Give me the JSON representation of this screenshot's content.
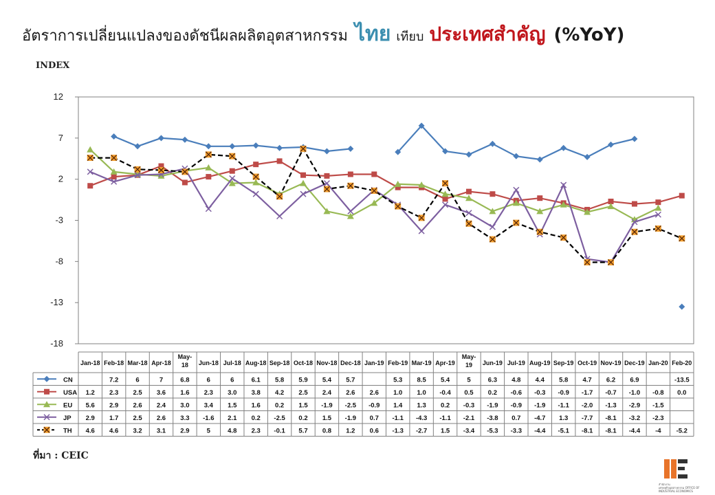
{
  "header": {
    "title_part1": "อัตราการเปลี่ยนแปลงของดัชนีผลผลิตอุตสาหกรรม",
    "title_part2": "ไทย",
    "title_part3": "เทียบ",
    "title_part4": "ประเทศสำคัญ",
    "title_part5": "(%YoY)"
  },
  "axis_label": "INDEX",
  "source": "ที่มา : CEIC",
  "logo": {
    "line1": "สำนักงาน",
    "line2": "เศรษฐกิจอุตสาหกรรม",
    "line3": "OFFICE",
    "line4": "OF INDUSTRIAL ECONOMICS"
  },
  "chart_data": {
    "type": "line",
    "title": "",
    "ylabel": "INDEX",
    "xlabel": "",
    "ylim": [
      -18,
      12
    ],
    "yticks": [
      12,
      7,
      2,
      -3,
      -8,
      -13,
      -18
    ],
    "grid": false,
    "legend": "table-below",
    "categories": [
      "Jan-18",
      "Feb-18",
      "Mar-18",
      "Apr-18",
      "May-18",
      "Jun-18",
      "Jul-18",
      "Aug-18",
      "Sep-18",
      "Oct-18",
      "Nov-18",
      "Dec-18",
      "Jan-19",
      "Feb-19",
      "Mar-19",
      "Apr-19",
      "May-19",
      "Jun-19",
      "Jul-19",
      "Aug-19",
      "Sep-19",
      "Oct-19",
      "Nov-19",
      "Dec-19",
      "Jan-20",
      "Feb-20"
    ],
    "category_labels": [
      "Jan-18",
      "Feb-18",
      "Mar-18",
      "Apr-18",
      "May-\n18",
      "Jun-18",
      "Jul-18",
      "Aug-18",
      "Sep-18",
      "Oct-18",
      "Nov-18",
      "Dec-18",
      "Jan-19",
      "Feb-19",
      "Mar-19",
      "Apr-19",
      "May-\n19",
      "Jun-19",
      "Jul-19",
      "Aug-19",
      "Sep-19",
      "Oct-19",
      "Nov-19",
      "Dec-19",
      "Jan-20",
      "Feb-20"
    ],
    "series": [
      {
        "name": "CN",
        "color": "#4a7ebb",
        "marker": "diamond",
        "values": [
          null,
          7.2,
          6,
          7,
          6.8,
          6,
          6,
          6.1,
          5.8,
          5.9,
          5.4,
          5.7,
          null,
          5.3,
          8.5,
          5.4,
          5,
          6.3,
          4.8,
          4.4,
          5.8,
          4.7,
          6.2,
          6.9,
          null,
          -13.5
        ],
        "labels": [
          "",
          "7.2",
          "6",
          "7",
          "6.8",
          "6",
          "6",
          "6.1",
          "5.8",
          "5.9",
          "5.4",
          "5.7",
          "",
          "5.3",
          "8.5",
          "5.4",
          "5",
          "6.3",
          "4.8",
          "4.4",
          "5.8",
          "4.7",
          "6.2",
          "6.9",
          "",
          "-13.5"
        ]
      },
      {
        "name": "USA",
        "color": "#be4b48",
        "marker": "square",
        "values": [
          1.2,
          2.3,
          2.5,
          3.6,
          1.6,
          2.3,
          3.0,
          3.8,
          4.2,
          2.5,
          2.4,
          2.6,
          2.6,
          1.0,
          1.0,
          -0.4,
          0.5,
          0.2,
          -0.6,
          -0.3,
          -0.9,
          -1.7,
          -0.7,
          -1.0,
          -0.8,
          0.0
        ],
        "labels": [
          "1.2",
          "2.3",
          "2.5",
          "3.6",
          "1.6",
          "2.3",
          "3.0",
          "3.8",
          "4.2",
          "2.5",
          "2.4",
          "2.6",
          "2.6",
          "1.0",
          "1.0",
          "-0.4",
          "0.5",
          "0.2",
          "-0.6",
          "-0.3",
          "-0.9",
          "-1.7",
          "-0.7",
          "-1.0",
          "-0.8",
          "0.0"
        ]
      },
      {
        "name": "EU",
        "color": "#98b954",
        "marker": "triangle",
        "values": [
          5.6,
          2.9,
          2.6,
          2.4,
          3.0,
          3.4,
          1.5,
          1.6,
          0.2,
          1.5,
          -1.9,
          -2.5,
          -0.9,
          1.4,
          1.3,
          0.2,
          -0.3,
          -1.9,
          -0.9,
          -1.9,
          -1.1,
          -2.0,
          -1.3,
          -2.9,
          -1.5,
          null
        ],
        "labels": [
          "5.6",
          "2.9",
          "2.6",
          "2.4",
          "3.0",
          "3.4",
          "1.5",
          "1.6",
          "0.2",
          "1.5",
          "-1.9",
          "-2.5",
          "-0.9",
          "1.4",
          "1.3",
          "0.2",
          "-0.3",
          "-1.9",
          "-0.9",
          "-1.9",
          "-1.1",
          "-2.0",
          "-1.3",
          "-2.9",
          "-1.5",
          ""
        ]
      },
      {
        "name": "JP",
        "color": "#7d5fa0",
        "marker": "cross",
        "values": [
          2.9,
          1.7,
          2.5,
          2.6,
          3.3,
          -1.6,
          2.1,
          0.2,
          -2.5,
          0.2,
          1.5,
          -1.9,
          0.7,
          -1.1,
          -4.3,
          -1.1,
          -2.1,
          -3.8,
          0.7,
          -4.7,
          1.3,
          -7.7,
          -8.1,
          -3.2,
          -2.3,
          null
        ],
        "labels": [
          "2.9",
          "1.7",
          "2.5",
          "2.6",
          "3.3",
          "-1.6",
          "2.1",
          "0.2",
          "-2.5",
          "0.2",
          "1.5",
          "-1.9",
          "0.7",
          "-1.1",
          "-4.3",
          "-1.1",
          "-2.1",
          "-3.8",
          "0.7",
          "-4.7",
          "1.3",
          "-7.7",
          "-8.1",
          "-3.2",
          "-2.3",
          ""
        ]
      },
      {
        "name": "TH",
        "color": "#000000",
        "marker": "star",
        "dashed": true,
        "values": [
          4.6,
          4.6,
          3.2,
          3.1,
          2.9,
          5,
          4.8,
          2.3,
          -0.1,
          5.7,
          0.8,
          1.2,
          0.6,
          -1.3,
          -2.7,
          1.5,
          -3.4,
          -5.3,
          -3.3,
          -4.4,
          -5.1,
          -8.1,
          -8.1,
          -4.4,
          -4,
          -5.2
        ],
        "labels": [
          "4.6",
          "4.6",
          "3.2",
          "3.1",
          "2.9",
          "5",
          "4.8",
          "2.3",
          "-0.1",
          "5.7",
          "0.8",
          "1.2",
          "0.6",
          "-1.3",
          "-2.7",
          "1.5",
          "-3.4",
          "-5.3",
          "-3.3",
          "-4.4",
          "-5.1",
          "-8.1",
          "-8.1",
          "-4.4",
          "-4",
          "-5.2"
        ]
      }
    ]
  }
}
